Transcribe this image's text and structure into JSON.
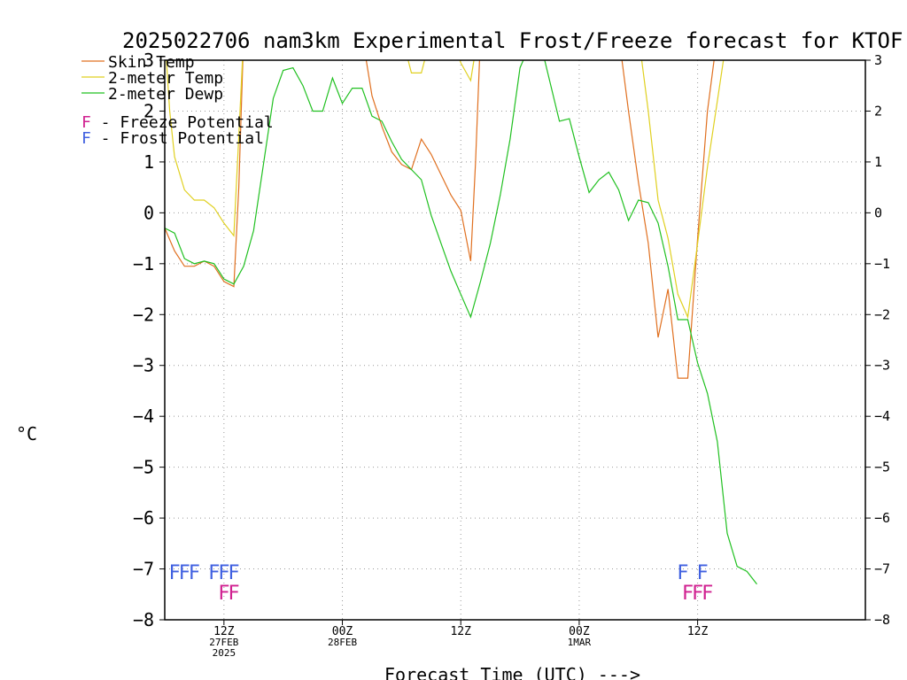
{
  "chart_data": {
    "type": "line",
    "title": "2025022706 nam3km Experimental Frost/Freeze forecast for KTOF",
    "xlabel": "Forecast Time (UTC) --->",
    "ylabel": "°C",
    "ylim": [
      -8,
      3
    ],
    "xlim": [
      6,
      77
    ],
    "y_ticks": [
      -8,
      -7,
      -6,
      -5,
      -4,
      -3,
      -2,
      -1,
      0,
      1,
      2,
      3
    ],
    "grid": true,
    "x_ticks": [
      {
        "x": 12,
        "lines": [
          "12Z",
          "27FEB",
          "2025"
        ]
      },
      {
        "x": 24,
        "lines": [
          "00Z",
          "28FEB"
        ]
      },
      {
        "x": 36,
        "lines": [
          "12Z"
        ]
      },
      {
        "x": 48,
        "lines": [
          "00Z",
          "1MAR"
        ]
      },
      {
        "x": 60,
        "lines": [
          "12Z"
        ]
      }
    ],
    "legend": {
      "placement": "top-left",
      "entries": [
        {
          "name": "Skin Temp",
          "color": "#e07020"
        },
        {
          "name": "2-meter Temp",
          "color": "#e0d020"
        },
        {
          "name": "2-meter Dewp",
          "color": "#20c020"
        }
      ],
      "potential": [
        {
          "letter": "F",
          "text": " - Freeze Potential",
          "color": "#d02090"
        },
        {
          "letter": "F",
          "text": " - Frost Potential",
          "color": "#4060e0"
        }
      ]
    },
    "series": [
      {
        "name": "Skin Temp",
        "color": "#e07020",
        "points": [
          [
            6,
            -0.3
          ],
          [
            7,
            -0.75
          ],
          [
            8,
            -1.05
          ],
          [
            9,
            -1.05
          ],
          [
            10,
            -0.95
          ],
          [
            11,
            -1.05
          ],
          [
            12,
            -1.35
          ],
          [
            13,
            -1.45
          ],
          [
            13.5,
            0.5
          ],
          [
            14,
            3.5
          ],
          [
            26,
            3.5
          ],
          [
            27,
            2.3
          ],
          [
            28,
            1.7
          ],
          [
            29,
            1.2
          ],
          [
            30,
            0.95
          ],
          [
            31,
            0.85
          ],
          [
            32,
            1.45
          ],
          [
            33,
            1.15
          ],
          [
            34,
            0.75
          ],
          [
            35,
            0.35
          ],
          [
            36,
            0.05
          ],
          [
            37,
            -0.95
          ],
          [
            37.5,
            1.0
          ],
          [
            38,
            3.5
          ],
          [
            46,
            3.5
          ],
          [
            51,
            3.5
          ],
          [
            52,
            3.5
          ],
          [
            53,
            2.0
          ],
          [
            54,
            0.6
          ],
          [
            55,
            -0.6
          ],
          [
            56,
            -2.45
          ],
          [
            57,
            -1.5
          ],
          [
            58,
            -3.25
          ],
          [
            59,
            -3.25
          ],
          [
            60,
            -0.5
          ],
          [
            61,
            2.0
          ],
          [
            62,
            3.5
          ],
          [
            77,
            3.5
          ]
        ]
      },
      {
        "name": "2-meter Temp",
        "color": "#e0d020",
        "points": [
          [
            6,
            3.5
          ],
          [
            6.5,
            2.0
          ],
          [
            7,
            1.1
          ],
          [
            8,
            0.45
          ],
          [
            9,
            0.25
          ],
          [
            10,
            0.25
          ],
          [
            11,
            0.1
          ],
          [
            12,
            -0.2
          ],
          [
            13,
            -0.45
          ],
          [
            13.5,
            1.5
          ],
          [
            14,
            3.5
          ],
          [
            30,
            3.5
          ],
          [
            31,
            2.75
          ],
          [
            32,
            2.75
          ],
          [
            33,
            3.5
          ],
          [
            35,
            3.5
          ],
          [
            36,
            2.95
          ],
          [
            37,
            2.6
          ],
          [
            37.5,
            3.2
          ],
          [
            38,
            3.5
          ],
          [
            54,
            3.5
          ],
          [
            55,
            2.0
          ],
          [
            56,
            0.25
          ],
          [
            57,
            -0.5
          ],
          [
            58,
            -1.6
          ],
          [
            59,
            -2.05
          ],
          [
            60,
            -0.6
          ],
          [
            61,
            0.9
          ],
          [
            62,
            2.2
          ],
          [
            63,
            3.5
          ],
          [
            77,
            3.5
          ]
        ]
      },
      {
        "name": "2-meter Dewp",
        "color": "#20c020",
        "points": [
          [
            6,
            -0.3
          ],
          [
            7,
            -0.4
          ],
          [
            8,
            -0.9
          ],
          [
            9,
            -1.0
          ],
          [
            10,
            -0.95
          ],
          [
            11,
            -1.0
          ],
          [
            12,
            -1.3
          ],
          [
            13,
            -1.4
          ],
          [
            14,
            -1.05
          ],
          [
            15,
            -0.35
          ],
          [
            16,
            0.95
          ],
          [
            17,
            2.25
          ],
          [
            18,
            2.8
          ],
          [
            19,
            2.85
          ],
          [
            20,
            2.5
          ],
          [
            21,
            2.0
          ],
          [
            22,
            2.0
          ],
          [
            23,
            2.65
          ],
          [
            24,
            2.15
          ],
          [
            25,
            2.45
          ],
          [
            26,
            2.45
          ],
          [
            27,
            1.9
          ],
          [
            28,
            1.8
          ],
          [
            29,
            1.4
          ],
          [
            30,
            1.05
          ],
          [
            31,
            0.85
          ],
          [
            32,
            0.65
          ],
          [
            33,
            -0.05
          ],
          [
            34,
            -0.6
          ],
          [
            35,
            -1.15
          ],
          [
            36,
            -1.6
          ],
          [
            37,
            -2.05
          ],
          [
            38,
            -1.35
          ],
          [
            39,
            -0.6
          ],
          [
            40,
            0.35
          ],
          [
            41,
            1.45
          ],
          [
            42,
            2.85
          ],
          [
            43,
            3.3
          ],
          [
            44,
            3.4
          ],
          [
            45,
            2.6
          ],
          [
            46,
            1.8
          ],
          [
            47,
            1.85
          ],
          [
            48,
            1.1
          ],
          [
            49,
            0.4
          ],
          [
            50,
            0.65
          ],
          [
            51,
            0.8
          ],
          [
            52,
            0.45
          ],
          [
            53,
            -0.15
          ],
          [
            54,
            0.25
          ],
          [
            55,
            0.2
          ],
          [
            56,
            -0.2
          ],
          [
            57,
            -1.05
          ],
          [
            58,
            -2.1
          ],
          [
            59,
            -2.1
          ],
          [
            60,
            -2.95
          ],
          [
            61,
            -3.55
          ],
          [
            62,
            -4.5
          ],
          [
            63,
            -6.3
          ],
          [
            64,
            -6.95
          ],
          [
            65,
            -7.05
          ],
          [
            66,
            -7.3
          ]
        ]
      }
    ],
    "frost_marks": [
      {
        "x": 7,
        "text": "F"
      },
      {
        "x": 8,
        "text": "F"
      },
      {
        "x": 9,
        "text": "F"
      },
      {
        "x": 11,
        "text": "F"
      },
      {
        "x": 12,
        "text": "F"
      },
      {
        "x": 13,
        "text": "F"
      },
      {
        "x": 58.5,
        "text": "F"
      },
      {
        "x": 60.5,
        "text": "F"
      }
    ],
    "freeze_marks": [
      {
        "x": 12,
        "text": "F"
      },
      {
        "x": 13,
        "text": "F"
      },
      {
        "x": 59,
        "text": "F"
      },
      {
        "x": 60,
        "text": "F"
      },
      {
        "x": 61,
        "text": "F"
      }
    ]
  }
}
